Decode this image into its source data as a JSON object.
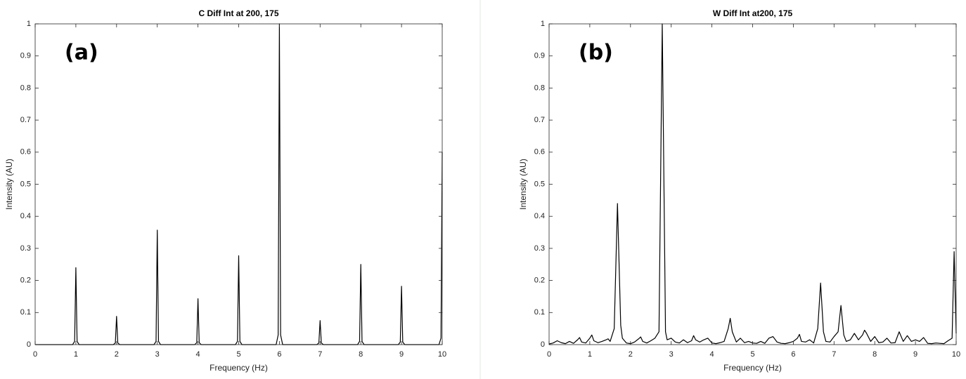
{
  "chart_data": [
    {
      "type": "line",
      "title": "C Diff Int at 200, 175",
      "annotation": "(a)",
      "xlabel": "Frequency (Hz)",
      "ylabel": "Intensity (AU)",
      "color": "#000000",
      "xlim": [
        0,
        10
      ],
      "ylim": [
        0,
        1
      ],
      "xticks": [
        0,
        1,
        2,
        3,
        4,
        5,
        6,
        7,
        8,
        9,
        10
      ],
      "yticks": [
        0,
        0.1,
        0.2,
        0.3,
        0.4,
        0.5,
        0.6,
        0.7,
        0.8,
        0.9,
        1
      ],
      "x": [
        0,
        0.92,
        0.97,
        1,
        1.03,
        1.08,
        1.92,
        1.97,
        2,
        2.03,
        2.08,
        2.92,
        2.97,
        3,
        3.03,
        3.08,
        3.92,
        3.97,
        4,
        4.03,
        4.08,
        4.92,
        4.97,
        5,
        5.03,
        5.08,
        5.92,
        5.97,
        6,
        6.03,
        6.08,
        6.92,
        6.97,
        7,
        7.03,
        7.08,
        7.92,
        7.97,
        8,
        8.03,
        8.08,
        8.92,
        8.97,
        9,
        9.03,
        9.08,
        9.92,
        9.97,
        10
      ],
      "values": [
        0,
        0,
        0.01,
        0.24,
        0.01,
        0,
        0,
        0.005,
        0.088,
        0.005,
        0,
        0,
        0.01,
        0.357,
        0.01,
        0,
        0,
        0.006,
        0.143,
        0.006,
        0,
        0,
        0.01,
        0.277,
        0.01,
        0,
        0,
        0.03,
        1,
        0.03,
        0,
        0,
        0.005,
        0.075,
        0.005,
        0,
        0,
        0.01,
        0.25,
        0.01,
        0,
        0,
        0.008,
        0.182,
        0.008,
        0,
        0,
        0.02,
        0.6
      ]
    },
    {
      "type": "line",
      "title": "W Diff Int at200, 175",
      "annotation": "(b)",
      "xlabel": "Frequency (Hz)",
      "ylabel": "Intensity (AU)",
      "color": "#000000",
      "xlim": [
        0,
        10
      ],
      "ylim": [
        0,
        1
      ],
      "xticks": [
        0,
        1,
        2,
        3,
        4,
        5,
        6,
        7,
        8,
        9,
        10
      ],
      "yticks": [
        0,
        0.1,
        0.2,
        0.3,
        0.4,
        0.5,
        0.6,
        0.7,
        0.8,
        0.9,
        1
      ],
      "x": [
        0,
        0.1,
        0.2,
        0.3,
        0.4,
        0.5,
        0.6,
        0.7,
        0.75,
        0.8,
        0.9,
        1.0,
        1.05,
        1.1,
        1.2,
        1.3,
        1.4,
        1.45,
        1.5,
        1.6,
        1.68,
        1.76,
        1.8,
        1.9,
        2.0,
        2.1,
        2.2,
        2.25,
        2.3,
        2.4,
        2.5,
        2.6,
        2.7,
        2.78,
        2.86,
        2.9,
        3.0,
        3.1,
        3.2,
        3.3,
        3.4,
        3.5,
        3.55,
        3.6,
        3.7,
        3.8,
        3.9,
        4.0,
        4.1,
        4.2,
        4.3,
        4.4,
        4.45,
        4.5,
        4.6,
        4.7,
        4.8,
        4.9,
        5.0,
        5.1,
        5.2,
        5.3,
        5.4,
        5.5,
        5.6,
        5.7,
        5.8,
        5.9,
        6.0,
        6.1,
        6.15,
        6.2,
        6.3,
        6.4,
        6.5,
        6.6,
        6.67,
        6.74,
        6.8,
        6.9,
        7.0,
        7.1,
        7.17,
        7.24,
        7.3,
        7.4,
        7.5,
        7.6,
        7.7,
        7.75,
        7.8,
        7.9,
        8.0,
        8.1,
        8.2,
        8.3,
        8.4,
        8.5,
        8.6,
        8.7,
        8.8,
        8.9,
        9.0,
        9.1,
        9.2,
        9.3,
        9.4,
        9.5,
        9.6,
        9.7,
        9.8,
        9.9,
        9.95,
        10
      ],
      "values": [
        0.002,
        0.005,
        0.012,
        0.006,
        0.003,
        0.01,
        0.004,
        0.015,
        0.022,
        0.008,
        0.005,
        0.02,
        0.03,
        0.012,
        0.006,
        0.01,
        0.015,
        0.018,
        0.01,
        0.05,
        0.44,
        0.06,
        0.02,
        0.005,
        0.003,
        0.008,
        0.018,
        0.024,
        0.01,
        0.005,
        0.012,
        0.02,
        0.04,
        1,
        0.04,
        0.015,
        0.02,
        0.008,
        0.005,
        0.015,
        0.006,
        0.012,
        0.028,
        0.015,
        0.008,
        0.015,
        0.02,
        0.005,
        0.003,
        0.006,
        0.01,
        0.05,
        0.082,
        0.04,
        0.008,
        0.02,
        0.006,
        0.01,
        0.005,
        0.004,
        0.01,
        0.004,
        0.02,
        0.025,
        0.008,
        0.004,
        0.003,
        0.006,
        0.01,
        0.02,
        0.032,
        0.01,
        0.008,
        0.015,
        0.005,
        0.05,
        0.192,
        0.04,
        0.01,
        0.008,
        0.025,
        0.04,
        0.122,
        0.03,
        0.01,
        0.015,
        0.035,
        0.015,
        0.03,
        0.045,
        0.035,
        0.01,
        0.025,
        0.006,
        0.008,
        0.02,
        0.005,
        0.006,
        0.04,
        0.01,
        0.028,
        0.01,
        0.015,
        0.01,
        0.022,
        0.004,
        0.003,
        0.005,
        0.004,
        0.003,
        0.012,
        0.02,
        0.29,
        0.035
      ]
    }
  ]
}
